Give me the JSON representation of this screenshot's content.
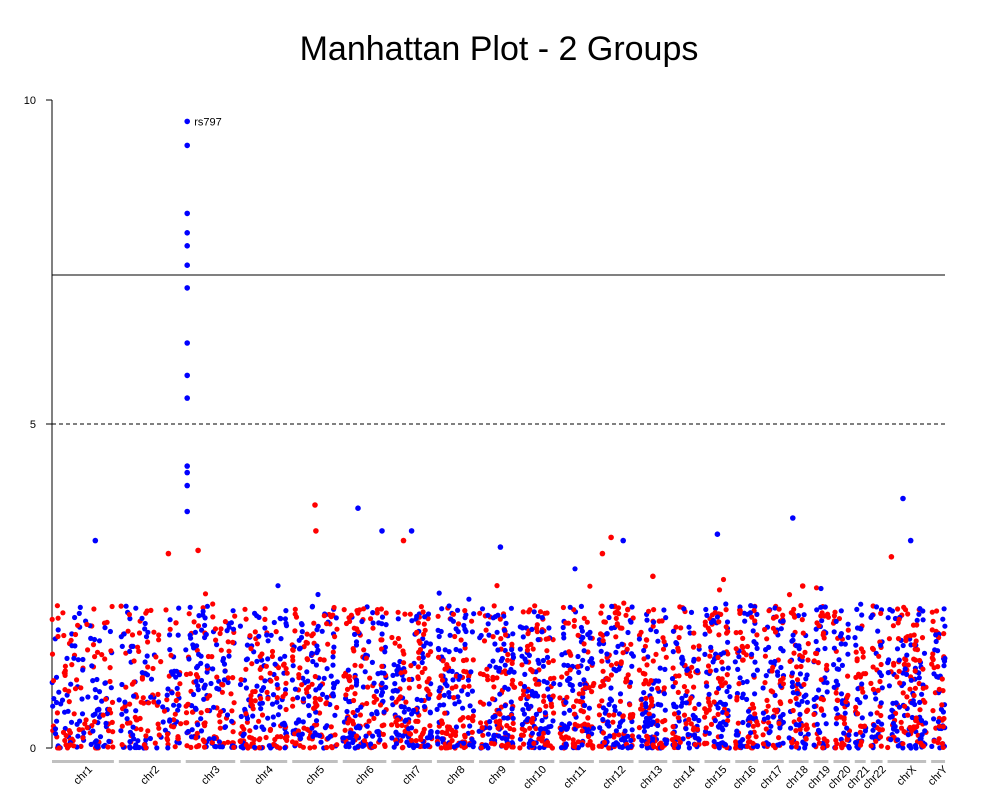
{
  "chart_data": {
    "type": "scatter",
    "title": "Manhattan Plot - 2 Groups",
    "xlabel": "",
    "ylabel": "",
    "ylim": [
      0,
      10
    ],
    "yticks": [
      0,
      5,
      10
    ],
    "grid": false,
    "legend": "none",
    "colors": {
      "group1": "#0000ff",
      "group2": "#ff0000",
      "threshold": "#000000",
      "axis_bar": "#c0c0c0"
    },
    "thresholds": [
      {
        "value": 7.3,
        "style": "solid"
      },
      {
        "value": 5.0,
        "style": "dashed"
      }
    ],
    "chromosomes": [
      {
        "name": "chr1",
        "size": 1.25
      },
      {
        "name": "chr2",
        "size": 1.25
      },
      {
        "name": "chr3",
        "size": 1.0
      },
      {
        "name": "chr4",
        "size": 0.95
      },
      {
        "name": "chr5",
        "size": 0.92
      },
      {
        "name": "chr6",
        "size": 0.88
      },
      {
        "name": "chr7",
        "size": 0.82
      },
      {
        "name": "chr8",
        "size": 0.75
      },
      {
        "name": "chr9",
        "size": 0.72
      },
      {
        "name": "chr10",
        "size": 0.7
      },
      {
        "name": "chr11",
        "size": 0.7
      },
      {
        "name": "chr12",
        "size": 0.7
      },
      {
        "name": "chr13",
        "size": 0.58
      },
      {
        "name": "chr14",
        "size": 0.55
      },
      {
        "name": "chr15",
        "size": 0.52
      },
      {
        "name": "chr16",
        "size": 0.46
      },
      {
        "name": "chr17",
        "size": 0.42
      },
      {
        "name": "chr18",
        "size": 0.4
      },
      {
        "name": "chr19",
        "size": 0.3
      },
      {
        "name": "chr20",
        "size": 0.33
      },
      {
        "name": "chr21",
        "size": 0.22
      },
      {
        "name": "chr22",
        "size": 0.24
      },
      {
        "name": "chrX",
        "size": 0.78
      },
      {
        "name": "chrY",
        "size": 0.28
      }
    ],
    "points_per_chromosome_per_group": 90,
    "background_max": 2.2,
    "series": [
      {
        "highlight_points": [
          {
            "chr": "chr3",
            "pos": 0.03,
            "y": 9.67,
            "label": "rs797"
          },
          {
            "chr": "chr3",
            "pos": 0.03,
            "y": 9.3
          },
          {
            "chr": "chr3",
            "pos": 0.03,
            "y": 8.25
          },
          {
            "chr": "chr3",
            "pos": 0.03,
            "y": 7.95
          },
          {
            "chr": "chr3",
            "pos": 0.03,
            "y": 7.75
          },
          {
            "chr": "chr3",
            "pos": 0.03,
            "y": 7.45
          },
          {
            "chr": "chr3",
            "pos": 0.03,
            "y": 7.1
          },
          {
            "chr": "chr3",
            "pos": 0.03,
            "y": 6.25
          },
          {
            "chr": "chr3",
            "pos": 0.03,
            "y": 5.75
          },
          {
            "chr": "chr3",
            "pos": 0.03,
            "y": 5.4
          },
          {
            "chr": "chr3",
            "pos": 0.03,
            "y": 4.35
          },
          {
            "chr": "chr3",
            "pos": 0.03,
            "y": 4.25
          },
          {
            "chr": "chr3",
            "pos": 0.03,
            "y": 4.05
          },
          {
            "chr": "chr3",
            "pos": 0.03,
            "y": 3.65
          },
          {
            "chr": "chr1",
            "pos": 0.7,
            "y": 3.2
          },
          {
            "chr": "chr6",
            "pos": 0.35,
            "y": 3.7
          },
          {
            "chr": "chr6",
            "pos": 0.9,
            "y": 3.35
          },
          {
            "chr": "chr7",
            "pos": 0.5,
            "y": 3.35
          },
          {
            "chr": "chr9",
            "pos": 0.6,
            "y": 3.1
          },
          {
            "chr": "chr12",
            "pos": 0.7,
            "y": 3.2
          },
          {
            "chr": "chr15",
            "pos": 0.5,
            "y": 3.3
          },
          {
            "chr": "chr18",
            "pos": 0.2,
            "y": 3.55
          },
          {
            "chr": "chrX",
            "pos": 0.4,
            "y": 3.85
          },
          {
            "chr": "chrX",
            "pos": 0.6,
            "y": 3.2
          }
        ]
      },
      {
        "highlight_points": [
          {
            "chr": "chr2",
            "pos": 0.8,
            "y": 3.0
          },
          {
            "chr": "chr3",
            "pos": 0.25,
            "y": 3.05
          },
          {
            "chr": "chr5",
            "pos": 0.5,
            "y": 3.75
          },
          {
            "chr": "chr5",
            "pos": 0.52,
            "y": 3.35
          },
          {
            "chr": "chr7",
            "pos": 0.3,
            "y": 3.2
          },
          {
            "chr": "chr12",
            "pos": 0.35,
            "y": 3.25
          },
          {
            "chr": "chr12",
            "pos": 0.1,
            "y": 3.0
          },
          {
            "chr": "chr13",
            "pos": 0.5,
            "y": 2.65
          },
          {
            "chr": "chr18",
            "pos": 0.7,
            "y": 2.5
          },
          {
            "chr": "chrX",
            "pos": 0.1,
            "y": 2.95
          }
        ]
      }
    ]
  }
}
